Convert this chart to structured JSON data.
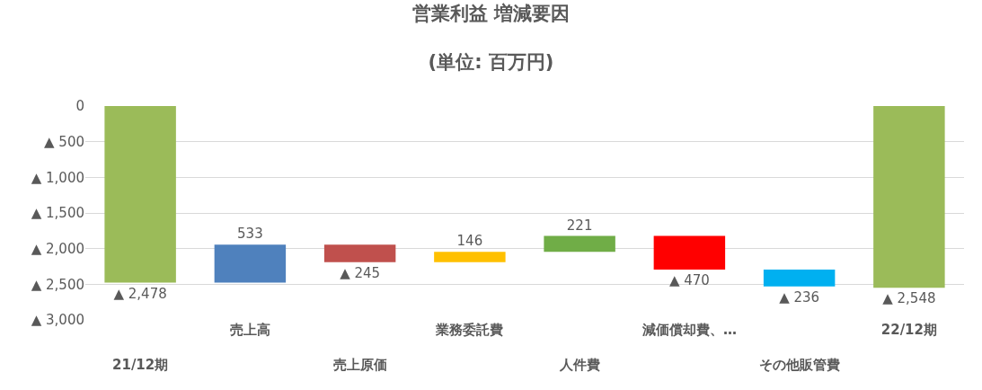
{
  "chart_data": {
    "type": "bar",
    "title": "営業利益 増減要因",
    "subtitle": "(単位: 百万円)",
    "categories": [
      "21/12期",
      "売上高",
      "売上原価",
      "業務委託費",
      "人件費",
      "減価償却費、…",
      "その他販管費",
      "22/12期"
    ],
    "values": [
      -2478,
      533,
      -245,
      146,
      221,
      -470,
      -236,
      -2548
    ],
    "base": [
      0,
      -2478,
      -1945,
      -2190,
      -2044,
      -1823,
      -2293,
      0
    ],
    "colors": [
      "#9bbb59",
      "#4f81bd",
      "#c0504d",
      "#ffc000",
      "#70ad47",
      "#ff0000",
      "#00b0f0",
      "#9bbb59"
    ],
    "value_labels": [
      "▲ 2,478",
      "533",
      "▲ 245",
      "146",
      "221",
      "▲ 470",
      "▲ 236",
      "▲ 2,548"
    ],
    "ylim": [
      -3000,
      0
    ],
    "yticks": [
      0,
      {
        "value": -500,
        "label": "▲ 500"
      },
      {
        "value": -1000,
        "label": "▲ 1,000"
      },
      {
        "value": -1500,
        "label": "▲ 1,500"
      },
      {
        "value": -2000,
        "label": "▲ 2,000"
      },
      {
        "value": -2500,
        "label": "▲ 2,500"
      },
      {
        "value": -3000,
        "label": "▲ 3,000"
      }
    ],
    "grid": "y",
    "legend": false
  }
}
